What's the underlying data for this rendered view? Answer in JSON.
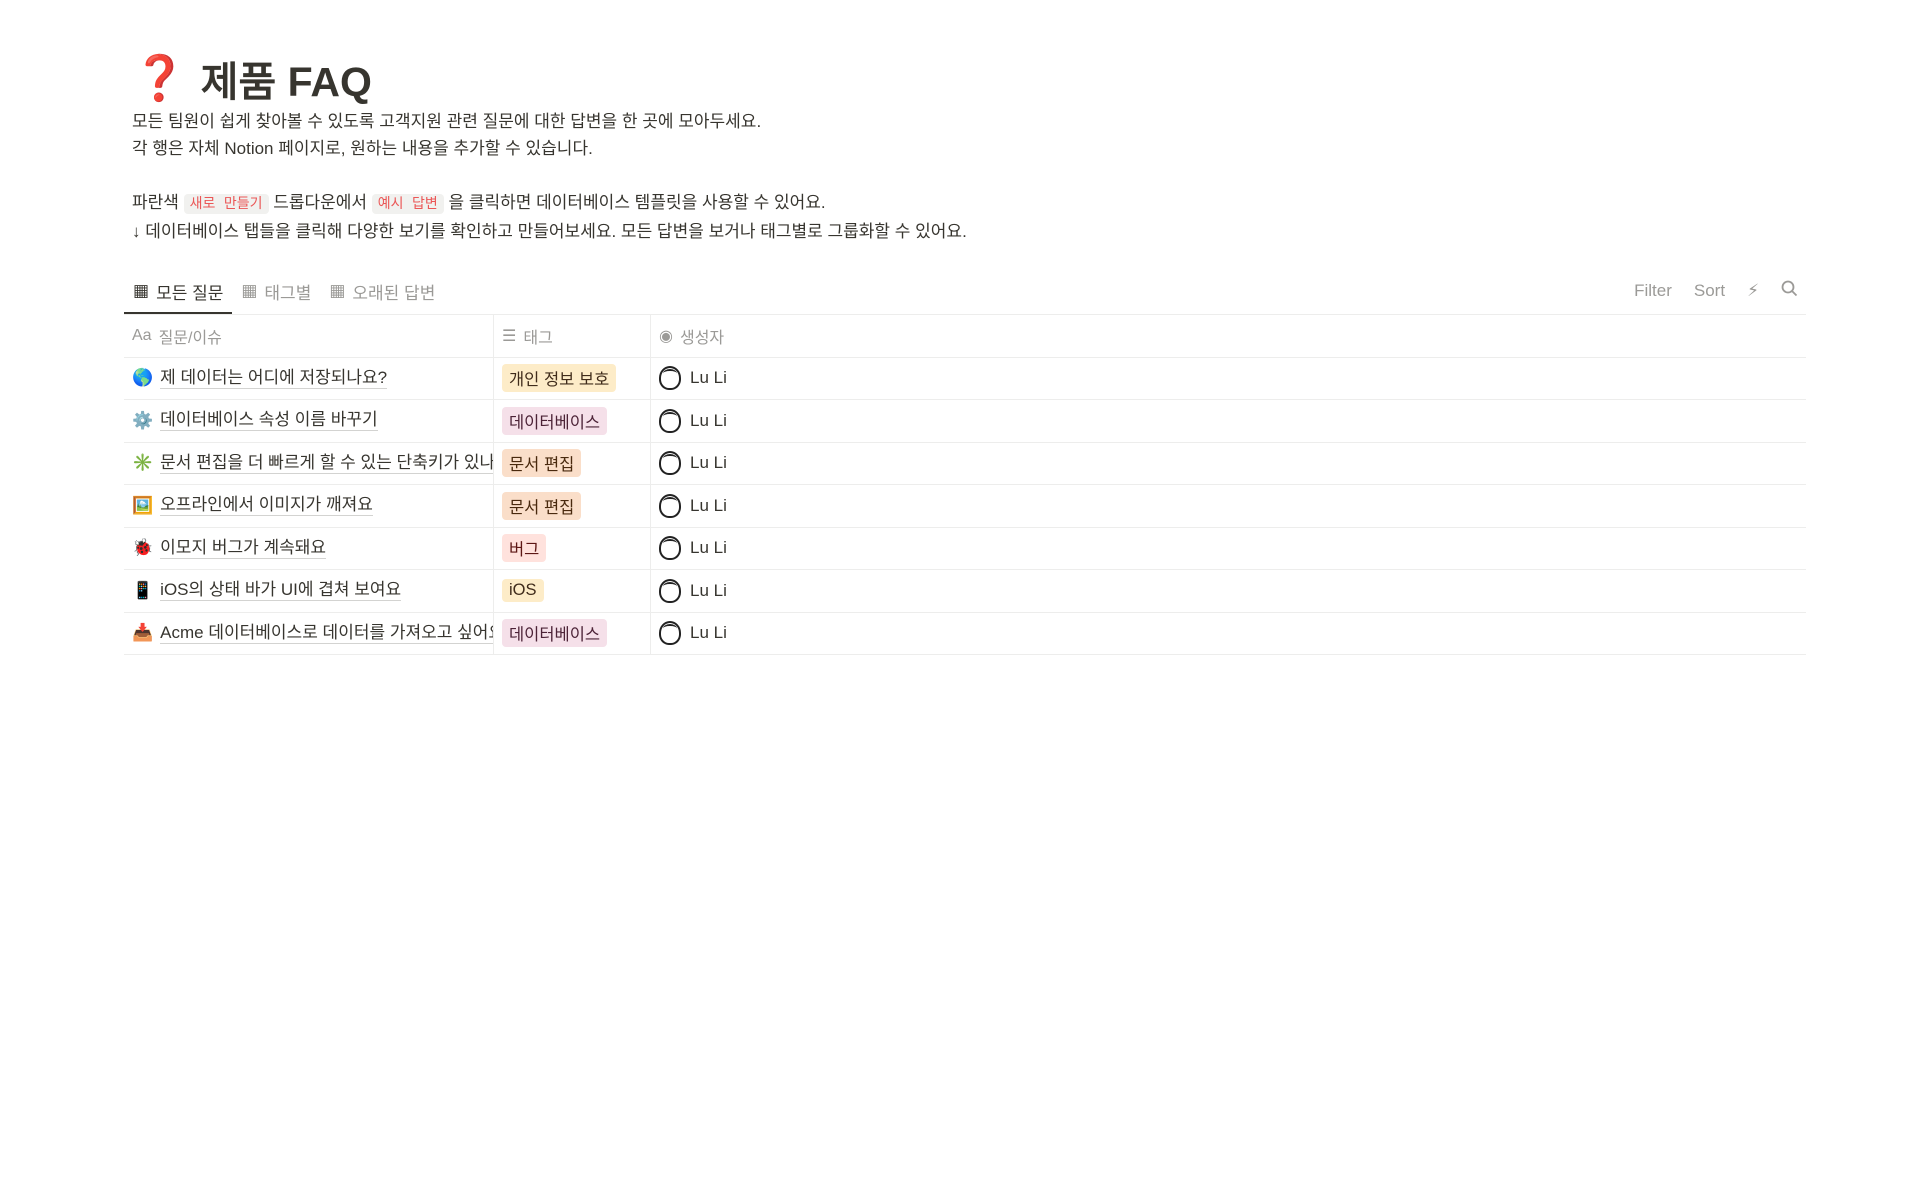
{
  "page": {
    "icon": "❓",
    "title": "제품 FAQ",
    "description": {
      "line1": "모든 팀원이 쉽게 찾아볼 수 있도록 고객지원 관련 질문에 대한 답변을 한 곳에 모아두세요.",
      "line2": "각 행은 자체 Notion 페이지로, 원하는 내용을 추가할 수 있습니다.",
      "line3_pre": "파란색 ",
      "line3_code1": "새로 만들기",
      "line3_mid": " 드롭다운에서 ",
      "line3_code2": "예시 답변",
      "line3_post": " 을 클릭하면 데이터베이스 템플릿을 사용할 수 있어요.",
      "line4": "↓ 데이터베이스 탭들을 클릭해 다양한 보기를 확인하고 만들어보세요. 모든 답변을 보거나 태그별로 그룹화할 수 있어요."
    }
  },
  "tabs": [
    {
      "label": "모든 질문",
      "active": true
    },
    {
      "label": "태그별"
    },
    {
      "label": "오래된 답변"
    }
  ],
  "toolbar": {
    "filter": "Filter",
    "sort": "Sort",
    "automation_icon": "lightning-icon",
    "search_icon": "search-icon"
  },
  "columns": [
    {
      "icon": "Aa",
      "label": "질문/이슈"
    },
    {
      "icon": "list-icon",
      "label": "태그"
    },
    {
      "icon": "person-icon",
      "label": "생성자"
    }
  ],
  "rows": [
    {
      "emoji": "🌎",
      "question": "제 데이터는 어디에 저장되나요?",
      "tag": "개인 정보 보호",
      "tag_bg": "#fdecc8",
      "tag_color": "#402c1b",
      "author": "Lu Li"
    },
    {
      "emoji": "⚙️",
      "question": "데이터베이스 속성 이름 바꾸기",
      "tag": "데이터베이스",
      "tag_bg": "#f5e0e9",
      "tag_color": "#4c2337",
      "author": "Lu Li"
    },
    {
      "emoji": "✳️",
      "question": "문서 편집을 더 빠르게 할 수 있는 단축키가 있나요?",
      "tag": "문서 편집",
      "tag_bg": "#fadec9",
      "tag_color": "#49290e",
      "author": "Lu Li"
    },
    {
      "emoji": "🖼️",
      "question": "오프라인에서 이미지가 깨져요",
      "tag": "문서 편집",
      "tag_bg": "#fadec9",
      "tag_color": "#49290e",
      "author": "Lu Li"
    },
    {
      "emoji": "🐞",
      "question": "이모지 버그가 계속돼요",
      "tag": "버그",
      "tag_bg": "#ffe2dd",
      "tag_color": "#5d1715",
      "author": "Lu Li"
    },
    {
      "emoji": "📱",
      "question": "iOS의 상태 바가 UI에 겹쳐 보여요",
      "tag": "iOS",
      "tag_bg": "#fdecc8",
      "tag_color": "#402c1b",
      "author": "Lu Li"
    },
    {
      "emoji": "📥",
      "question": "Acme 데이터베이스로 데이터를 가져오고 싶어요",
      "tag": "데이터베이스",
      "tag_bg": "#f5e0e9",
      "tag_color": "#4c2337",
      "author": "Lu Li"
    }
  ]
}
